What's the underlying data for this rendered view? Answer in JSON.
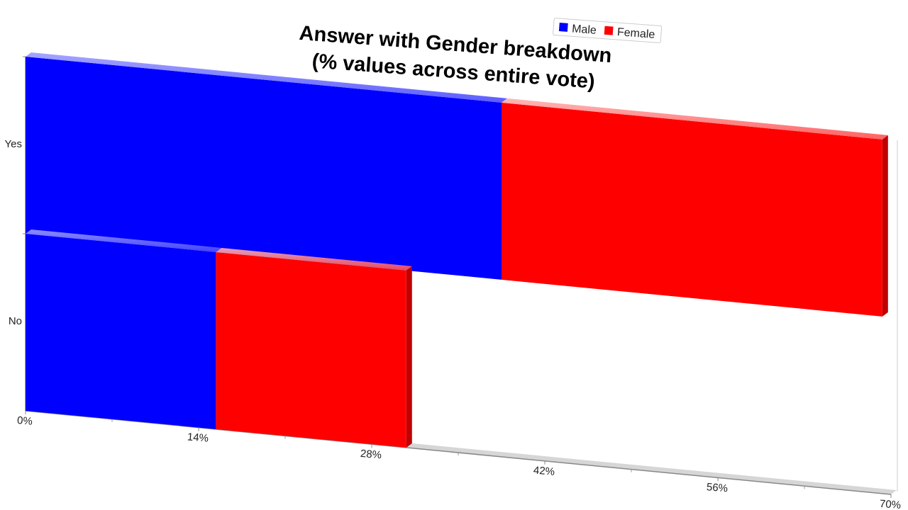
{
  "chart_data": {
    "type": "bar",
    "orientation": "horizontal",
    "stacked": true,
    "three_d": true,
    "title_lines": [
      "Answer with Gender breakdown",
      "(% values across entire vote)"
    ],
    "categories": [
      "Yes",
      "No"
    ],
    "series": [
      {
        "name": "Male",
        "color": "#0000ff",
        "values": [
          38.5,
          15.4
        ]
      },
      {
        "name": "Female",
        "color": "#ff0000",
        "values": [
          30.8,
          15.4
        ]
      }
    ],
    "x_ticks": [
      "0%",
      "14%",
      "28%",
      "42%",
      "56%",
      "70%"
    ],
    "xlim": [
      0,
      70
    ],
    "legend_position": "top-right",
    "grid": false
  }
}
